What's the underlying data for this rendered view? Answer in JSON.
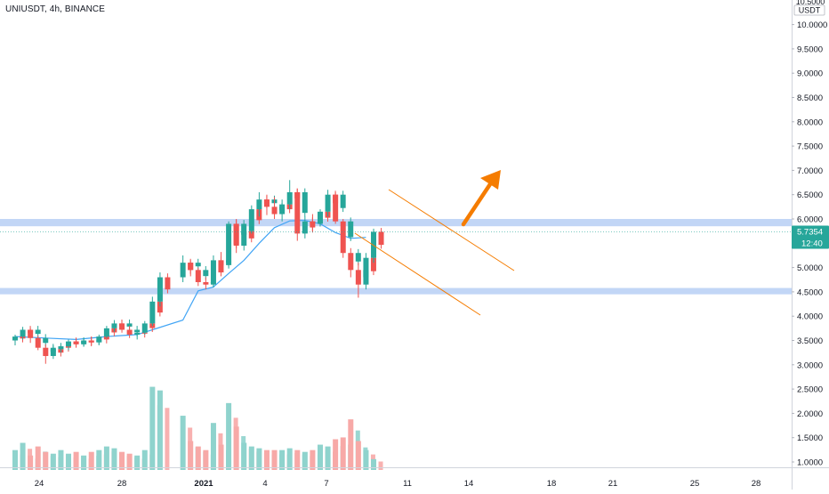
{
  "header": {
    "symbol_label": "UNIUSDT, 4h, BINANCE"
  },
  "axis": {
    "price_ticks": [
      "10.0000",
      "9.5000",
      "9.0000",
      "8.5000",
      "8.0000",
      "7.5000",
      "7.0000",
      "6.5000",
      "6.0000",
      "5.5000",
      "5.0000",
      "4.5000",
      "4.0000",
      "3.5000",
      "3.0000",
      "2.5000",
      "2.0000",
      "1.5000",
      "1.0000"
    ],
    "top_partial_label": "10.5000",
    "currency_label": "USDT",
    "time_ticks": [
      "24",
      "28",
      "2021",
      "4",
      "7",
      "11",
      "14",
      "18",
      "21",
      "25",
      "28"
    ]
  },
  "last_price": {
    "value": "5.7354",
    "countdown": "12:40"
  },
  "colors": {
    "up": "#26a69a",
    "down": "#ef5350",
    "volume_up": "#8fd3cd",
    "volume_down": "#f7a9a7",
    "ma": "#42a5f5",
    "zone": "#b7cff5",
    "trend": "#f57c00",
    "price_tag": "#26a69a"
  },
  "chart_data": {
    "type": "candlestick",
    "title": "UNIUSDT, 4h, BINANCE",
    "interval": "4h",
    "y_range": [
      0.5,
      10.5
    ],
    "x_range": [
      "2020-12-22",
      "2021-01-30"
    ],
    "support_zones": [
      {
        "name": "resistance zone",
        "low": 5.85,
        "high": 6.0
      },
      {
        "name": "support zone",
        "low": 4.45,
        "high": 4.58
      }
    ],
    "descending_channel": {
      "upper": [
        [
          "2021-01-10",
          6.6
        ],
        [
          "2021-01-16",
          4.95
        ]
      ],
      "lower": [
        [
          "2021-01-08",
          5.75
        ],
        [
          "2021-01-14",
          4.05
        ]
      ]
    },
    "breakout_arrow": {
      "from": [
        "2021-01-13",
        5.9
      ],
      "to": [
        "2021-01-14",
        7.0
      ]
    },
    "moving_average": [
      [
        "2020-12-22",
        3.58
      ],
      [
        "2020-12-24",
        3.55
      ],
      [
        "2020-12-26",
        3.52
      ],
      [
        "2020-12-28",
        3.58
      ],
      [
        "2020-12-30",
        3.62
      ],
      [
        "2020-12-31",
        3.72
      ],
      [
        "2021-01-01",
        3.92
      ],
      [
        "2021-01-02",
        4.52
      ],
      [
        "2021-01-03",
        4.6
      ],
      [
        "2021-01-04",
        4.88
      ],
      [
        "2021-01-05",
        5.15
      ],
      [
        "2021-01-06",
        5.5
      ],
      [
        "2021-01-07",
        5.82
      ],
      [
        "2021-01-08",
        5.96
      ],
      [
        "2021-01-09",
        5.97
      ],
      [
        "2021-01-10",
        5.9
      ],
      [
        "2021-01-11",
        5.72
      ],
      [
        "2021-01-12",
        5.6
      ],
      [
        "2021-01-13",
        5.62
      ]
    ],
    "candles": [
      [
        "2020-12-22T00",
        3.5,
        3.62,
        3.4,
        3.58
      ],
      [
        "2020-12-22T12",
        3.58,
        3.78,
        3.52,
        3.72
      ],
      [
        "2020-12-23T00",
        3.72,
        3.76,
        3.45,
        3.55
      ],
      [
        "2020-12-23T12",
        3.55,
        3.6,
        3.3,
        3.35
      ],
      [
        "2020-12-24T00",
        3.35,
        3.42,
        3.02,
        3.18
      ],
      [
        "2020-12-24T12",
        3.18,
        3.4,
        3.12,
        3.32
      ],
      [
        "2020-12-25T00",
        3.32,
        3.45,
        3.25,
        3.38
      ],
      [
        "2020-12-25T12",
        3.38,
        3.52,
        3.3,
        3.48
      ],
      [
        "2020-12-26T00",
        3.48,
        3.55,
        3.36,
        3.42
      ],
      [
        "2020-12-26T12",
        3.42,
        3.56,
        3.38,
        3.5
      ],
      [
        "2020-12-27T00",
        3.5,
        3.58,
        3.4,
        3.46
      ],
      [
        "2020-12-27T12",
        3.46,
        3.62,
        3.42,
        3.58
      ],
      [
        "2020-12-28T00",
        3.58,
        3.8,
        3.55,
        3.75
      ],
      [
        "2020-12-28T12",
        3.75,
        3.92,
        3.68,
        3.85
      ],
      [
        "2020-12-29T00",
        3.85,
        3.92,
        3.66,
        3.72
      ],
      [
        "2020-12-29T12",
        3.72,
        3.8,
        3.55,
        3.62
      ],
      [
        "2020-12-30T00",
        3.62,
        3.7,
        3.52,
        3.66
      ],
      [
        "2020-12-30T12",
        3.66,
        3.9,
        3.62,
        3.85
      ],
      [
        "2020-12-31T00",
        3.85,
        4.4,
        3.8,
        4.3
      ],
      [
        "2020-12-31T12",
        4.3,
        4.9,
        4.2,
        4.8
      ],
      [
        "2021-01-01T00",
        4.8,
        5.25,
        4.7,
        5.1
      ],
      [
        "2021-01-01T12",
        5.1,
        5.15,
        4.82,
        4.95
      ],
      [
        "2021-01-02T00",
        4.95,
        5.0,
        4.62,
        4.7
      ],
      [
        "2021-01-02T12",
        4.7,
        4.8,
        4.55,
        4.65
      ],
      [
        "2021-01-03T00",
        4.65,
        5.25,
        4.6,
        5.15
      ],
      [
        "2021-01-03T12",
        5.15,
        5.32,
        4.95,
        5.05
      ],
      [
        "2021-01-04T00",
        5.05,
        5.95,
        4.98,
        5.9
      ],
      [
        "2021-01-04T12",
        5.9,
        6.0,
        5.3,
        5.45
      ],
      [
        "2021-01-05T00",
        5.45,
        5.85,
        5.35,
        5.75
      ],
      [
        "2021-01-05T12",
        5.75,
        6.28,
        5.7,
        6.2
      ],
      [
        "2021-01-06T00",
        6.2,
        6.55,
        6.05,
        6.4
      ],
      [
        "2021-01-06T12",
        6.4,
        6.5,
        6.08,
        6.25
      ],
      [
        "2021-01-07T00",
        6.25,
        6.45,
        6.0,
        6.1
      ],
      [
        "2021-01-07T12",
        6.1,
        6.4,
        5.95,
        6.3
      ],
      [
        "2021-01-08T00",
        6.3,
        6.8,
        6.2,
        6.55
      ],
      [
        "2021-01-08T12",
        6.55,
        6.62,
        5.55,
        5.7
      ],
      [
        "2021-01-09T00",
        5.7,
        6.05,
        5.6,
        5.95
      ],
      [
        "2021-01-09T12",
        5.95,
        6.1,
        5.72,
        5.9
      ],
      [
        "2021-01-10T00",
        5.9,
        6.2,
        5.85,
        6.15
      ],
      [
        "2021-01-10T12",
        6.15,
        6.6,
        6.05,
        6.5
      ],
      [
        "2021-01-11T00",
        6.5,
        6.55,
        5.9,
        5.95
      ],
      [
        "2021-01-11T12",
        5.95,
        6.0,
        5.2,
        5.3
      ],
      [
        "2021-01-12T00",
        5.3,
        5.4,
        4.8,
        4.95
      ],
      [
        "2021-01-12T12",
        4.95,
        5.1,
        4.38,
        4.65
      ],
      [
        "2021-01-13T00",
        4.65,
        5.3,
        4.55,
        5.2
      ],
      [
        "2021-01-13T12",
        5.2,
        5.8,
        5.1,
        5.7354
      ]
    ],
    "volume": [
      1.45,
      1.65,
      1.3,
      1.55,
      1.4,
      1.35,
      1.45,
      1.35,
      1.4,
      1.3,
      1.4,
      1.45,
      1.55,
      1.5,
      1.4,
      1.35,
      1.3,
      1.45,
      3.2,
      3.1,
      2.4,
      1.7,
      1.55,
      1.45,
      2.2,
      1.6,
      2.75,
      2.1,
      1.65,
      1.55,
      1.5,
      1.45,
      1.45,
      1.45,
      1.5,
      1.45,
      1.4,
      1.45,
      1.6,
      1.55,
      1.75,
      1.8,
      2.3,
      1.7,
      1.45,
      1.2
    ]
  }
}
